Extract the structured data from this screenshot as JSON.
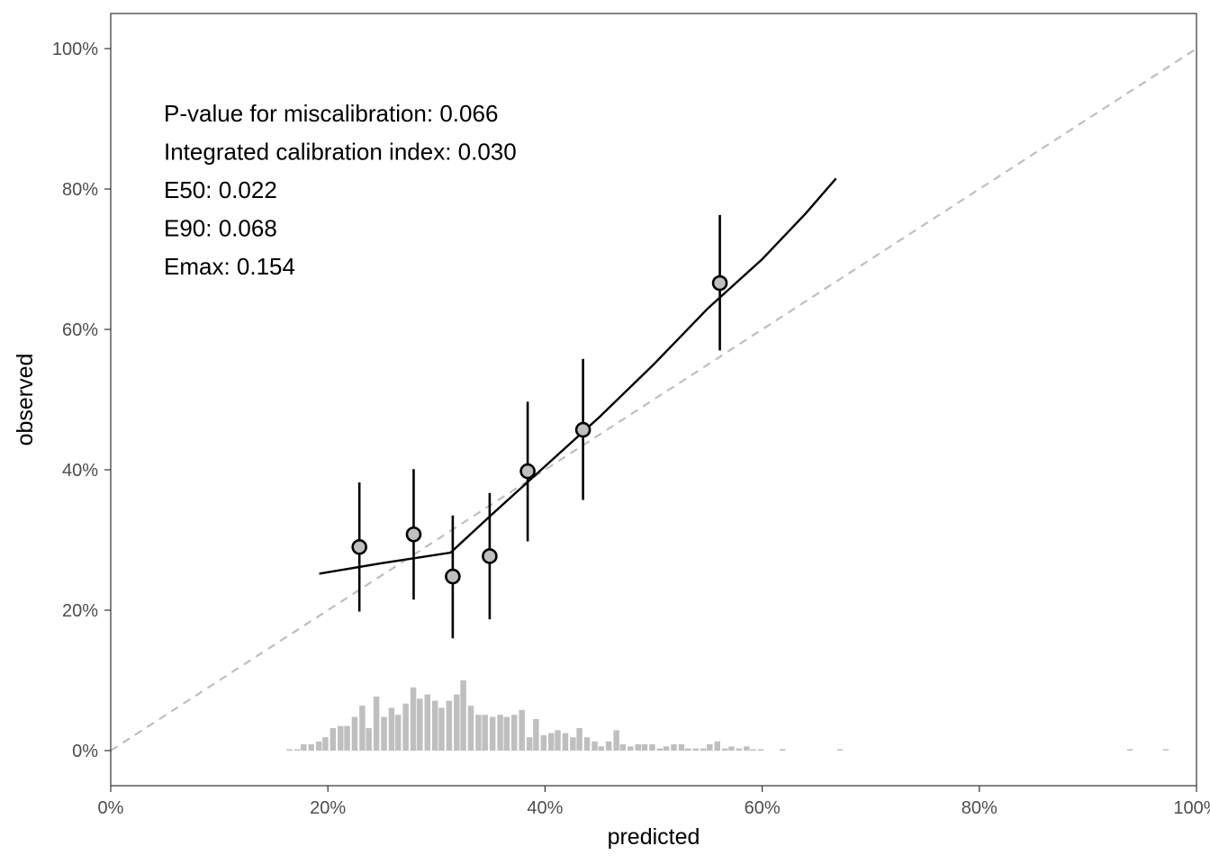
{
  "chart_data": {
    "type": "scatter",
    "xlabel": "predicted",
    "ylabel": "observed",
    "xlim": [
      0,
      1
    ],
    "ylim": [
      -0.05,
      1.05
    ],
    "x_ticks": [
      0,
      0.2,
      0.4,
      0.6,
      0.8,
      1.0
    ],
    "x_tick_labels": [
      "0%",
      "20%",
      "40%",
      "60%",
      "80%",
      "100%"
    ],
    "y_ticks": [
      0,
      0.2,
      0.4,
      0.6,
      0.8,
      1.0
    ],
    "y_tick_labels": [
      "0%",
      "20%",
      "40%",
      "60%",
      "80%",
      "100%"
    ],
    "grid": false,
    "annotations": [
      "P-value for miscalibration: 0.066",
      "Integrated calibration index: 0.030",
      "E50: 0.022",
      "E90: 0.068",
      "Emax: 0.154"
    ],
    "reference_line": {
      "style": "dashed",
      "color": "#bfbfbf",
      "from": [
        0,
        0
      ],
      "to": [
        1,
        1
      ]
    },
    "points": [
      {
        "x": 0.229,
        "y": 0.29,
        "ci_low": 0.198,
        "ci_high": 0.382
      },
      {
        "x": 0.279,
        "y": 0.308,
        "ci_low": 0.215,
        "ci_high": 0.401
      },
      {
        "x": 0.315,
        "y": 0.248,
        "ci_low": 0.16,
        "ci_high": 0.335
      },
      {
        "x": 0.349,
        "y": 0.277,
        "ci_low": 0.187,
        "ci_high": 0.367
      },
      {
        "x": 0.384,
        "y": 0.398,
        "ci_low": 0.298,
        "ci_high": 0.497
      },
      {
        "x": 0.435,
        "y": 0.457,
        "ci_low": 0.357,
        "ci_high": 0.558
      },
      {
        "x": 0.561,
        "y": 0.666,
        "ci_low": 0.57,
        "ci_high": 0.763
      }
    ],
    "calibration_curve": [
      [
        0.192,
        0.252
      ],
      [
        0.25,
        0.267
      ],
      [
        0.313,
        0.282
      ],
      [
        0.35,
        0.335
      ],
      [
        0.4,
        0.405
      ],
      [
        0.45,
        0.475
      ],
      [
        0.5,
        0.55
      ],
      [
        0.55,
        0.63
      ],
      [
        0.6,
        0.7
      ],
      [
        0.64,
        0.765
      ],
      [
        0.668,
        0.815
      ]
    ],
    "histogram": {
      "color": "#bfbfbf",
      "bin_width": 0.0067,
      "bins": [
        [
          0.162,
          0.002
        ],
        [
          0.169,
          0.002
        ],
        [
          0.175,
          0.009
        ],
        [
          0.182,
          0.009
        ],
        [
          0.189,
          0.013
        ],
        [
          0.195,
          0.019
        ],
        [
          0.202,
          0.032
        ],
        [
          0.209,
          0.035
        ],
        [
          0.215,
          0.035
        ],
        [
          0.222,
          0.048
        ],
        [
          0.229,
          0.064
        ],
        [
          0.235,
          0.032
        ],
        [
          0.242,
          0.077
        ],
        [
          0.249,
          0.048
        ],
        [
          0.256,
          0.061
        ],
        [
          0.262,
          0.051
        ],
        [
          0.269,
          0.067
        ],
        [
          0.276,
          0.09
        ],
        [
          0.282,
          0.074
        ],
        [
          0.289,
          0.08
        ],
        [
          0.296,
          0.071
        ],
        [
          0.302,
          0.061
        ],
        [
          0.309,
          0.071
        ],
        [
          0.316,
          0.08
        ],
        [
          0.322,
          0.1
        ],
        [
          0.329,
          0.064
        ],
        [
          0.336,
          0.051
        ],
        [
          0.342,
          0.051
        ],
        [
          0.349,
          0.048
        ],
        [
          0.356,
          0.051
        ],
        [
          0.362,
          0.048
        ],
        [
          0.369,
          0.051
        ],
        [
          0.376,
          0.058
        ],
        [
          0.383,
          0.019
        ],
        [
          0.389,
          0.045
        ],
        [
          0.396,
          0.022
        ],
        [
          0.403,
          0.025
        ],
        [
          0.409,
          0.029
        ],
        [
          0.416,
          0.025
        ],
        [
          0.423,
          0.019
        ],
        [
          0.429,
          0.032
        ],
        [
          0.436,
          0.019
        ],
        [
          0.443,
          0.013
        ],
        [
          0.449,
          0.006
        ],
        [
          0.456,
          0.013
        ],
        [
          0.463,
          0.029
        ],
        [
          0.469,
          0.009
        ],
        [
          0.476,
          0.006
        ],
        [
          0.483,
          0.009
        ],
        [
          0.489,
          0.009
        ],
        [
          0.496,
          0.009
        ],
        [
          0.503,
          0.003
        ],
        [
          0.509,
          0.006
        ],
        [
          0.516,
          0.009
        ],
        [
          0.523,
          0.009
        ],
        [
          0.529,
          0.003
        ],
        [
          0.536,
          0.003
        ],
        [
          0.543,
          0.003
        ],
        [
          0.549,
          0.009
        ],
        [
          0.556,
          0.013
        ],
        [
          0.563,
          0.003
        ],
        [
          0.569,
          0.006
        ],
        [
          0.576,
          0.003
        ],
        [
          0.583,
          0.006
        ],
        [
          0.589,
          0.002
        ],
        [
          0.596,
          0.002
        ],
        [
          0.616,
          0.002
        ],
        [
          0.669,
          0.002
        ],
        [
          0.936,
          0.002
        ],
        [
          0.969,
          0.002
        ]
      ]
    }
  }
}
